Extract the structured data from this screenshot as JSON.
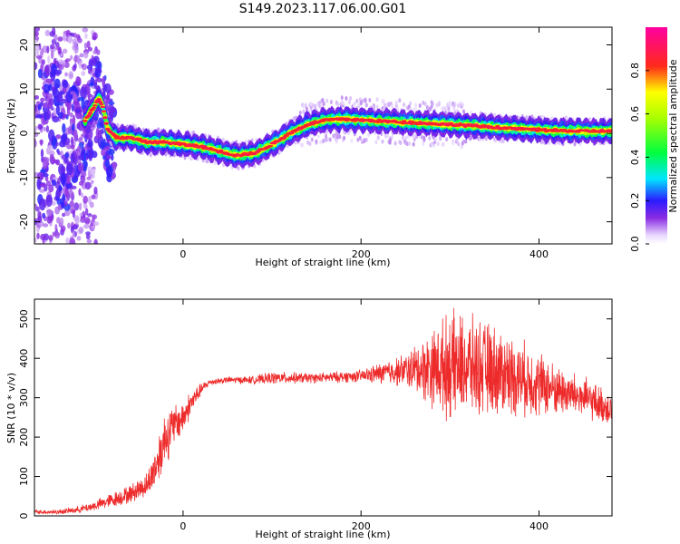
{
  "title": "S149.2023.117.06.00.G01",
  "colors": {
    "snr_line": "#ee2b2b",
    "axis": "#000000"
  },
  "chart_data": [
    {
      "type": "heatmap",
      "xlabel": "Height of straight line (km)",
      "ylabel": "Frequency (Hz)",
      "xlim": [
        -167,
        482
      ],
      "ylim": [
        -25,
        24
      ],
      "xticks": [
        0,
        200,
        400
      ],
      "yticks": [
        -20,
        -10,
        0,
        10,
        20
      ],
      "colorbar": {
        "label": "Normalized spectral amplitude",
        "ticks": [
          0.0,
          0.2,
          0.4,
          0.6,
          0.8
        ],
        "range": [
          0,
          1
        ],
        "colormap": "white-violet-blue-cyan-green-yellow-red-magenta"
      },
      "ridge": {
        "x": [
          -130,
          -110,
          -100,
          -95,
          -90,
          -85,
          -75,
          -60,
          -40,
          -20,
          0,
          20,
          40,
          60,
          80,
          100,
          120,
          140,
          160,
          180,
          200,
          220,
          250,
          280,
          300,
          320,
          340,
          360,
          380,
          400,
          420,
          440,
          460,
          482
        ],
        "y": [
          -2,
          3,
          6,
          8,
          6,
          1,
          -1,
          -1,
          -2,
          -2,
          -2.5,
          -3,
          -4,
          -5,
          -4.5,
          -2.5,
          0,
          2,
          3,
          3.2,
          3,
          2.8,
          2.5,
          2.2,
          2,
          1.8,
          1.5,
          1.2,
          1,
          0.8,
          0.6,
          0.5,
          0.5,
          0.5
        ]
      }
    },
    {
      "type": "line",
      "xlabel": "Height of straight line (km)",
      "ylabel": "SNR (10 * v/v)",
      "xlim": [
        -167,
        482
      ],
      "ylim": [
        0,
        550
      ],
      "xticks": [
        0,
        200,
        400
      ],
      "yticks": [
        0,
        100,
        200,
        300,
        400,
        500
      ],
      "series": [
        {
          "x": [
            -167,
            -140,
            -120,
            -100,
            -80,
            -60,
            -40,
            -30,
            -20,
            -10,
            0,
            10,
            20,
            30,
            50,
            80,
            100,
            150,
            200,
            250,
            300,
            320,
            350,
            380,
            400,
            420,
            450,
            482
          ],
          "y": [
            10,
            10,
            15,
            25,
            40,
            55,
            80,
            130,
            200,
            230,
            250,
            290,
            320,
            340,
            345,
            345,
            350,
            350,
            355,
            370,
            380,
            380,
            370,
            350,
            335,
            320,
            300,
            270
          ],
          "spread": [
            5,
            6,
            8,
            12,
            18,
            22,
            30,
            55,
            70,
            50,
            40,
            30,
            15,
            8,
            8,
            10,
            15,
            12,
            15,
            40,
            130,
            120,
            110,
            90,
            80,
            60,
            50,
            40
          ]
        }
      ]
    }
  ]
}
